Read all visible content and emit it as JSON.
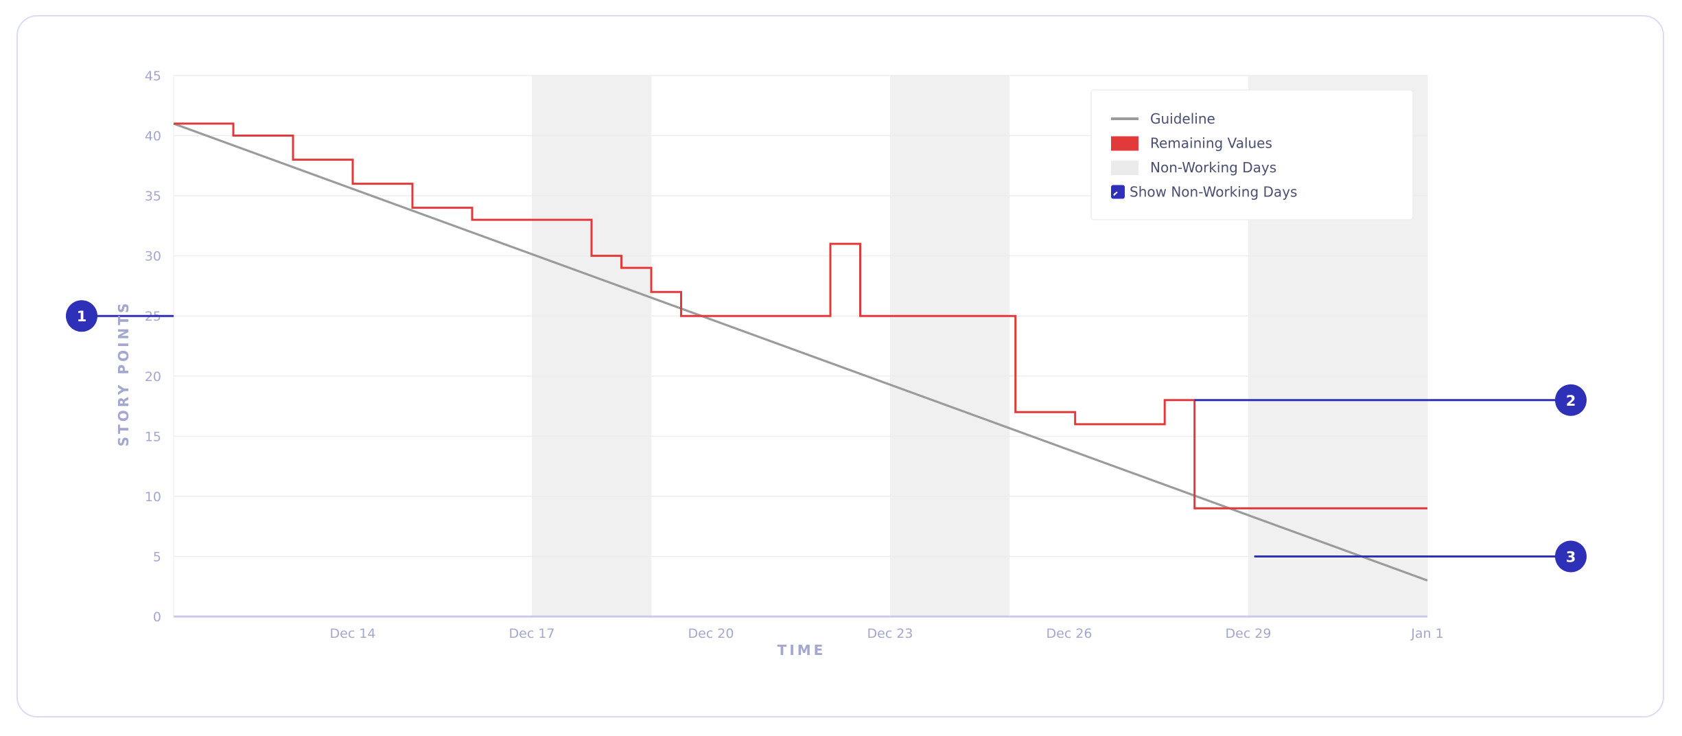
{
  "chart_data": {
    "type": "line",
    "xlabel": "TIME",
    "ylabel": "STORY POINTS",
    "ylim": [
      0,
      45
    ],
    "yticks": [
      0,
      5,
      10,
      15,
      20,
      25,
      30,
      35,
      40,
      45
    ],
    "xrange_days": [
      "Dec 11",
      "Jan 1"
    ],
    "xticks": [
      {
        "day": 3,
        "label": "Dec 14"
      },
      {
        "day": 6,
        "label": "Dec 17"
      },
      {
        "day": 9,
        "label": "Dec 20"
      },
      {
        "day": 12,
        "label": "Dec 23"
      },
      {
        "day": 15,
        "label": "Dec 26"
      },
      {
        "day": 18,
        "label": "Dec 29"
      },
      {
        "day": 21,
        "label": "Jan 1"
      }
    ],
    "non_working_days": [
      [
        6,
        8
      ],
      [
        12,
        14
      ],
      [
        18,
        21
      ]
    ],
    "series": [
      {
        "name": "Guideline",
        "kind": "line",
        "color": "#9b9b9b",
        "points": [
          [
            0,
            41
          ],
          [
            21,
            3
          ]
        ]
      },
      {
        "name": "Remaining Values",
        "kind": "step",
        "color": "#e23a3a",
        "points": [
          [
            0,
            41
          ],
          [
            1,
            40
          ],
          [
            2,
            38
          ],
          [
            3,
            36
          ],
          [
            4,
            34
          ],
          [
            5,
            33
          ],
          [
            7,
            30
          ],
          [
            7.5,
            29
          ],
          [
            8,
            27
          ],
          [
            8.5,
            25
          ],
          [
            11,
            31
          ],
          [
            11.5,
            25
          ],
          [
            14.1,
            17
          ],
          [
            15.1,
            16
          ],
          [
            16.6,
            18
          ],
          [
            17.1,
            9
          ],
          [
            21,
            9
          ]
        ]
      }
    ],
    "legend": {
      "position": "top-right",
      "items": [
        {
          "label": "Guideline",
          "swatch": "line",
          "color": "#9b9b9b"
        },
        {
          "label": "Remaining Values",
          "swatch": "box",
          "color": "#e23a3a"
        },
        {
          "label": "Non-Working Days",
          "swatch": "box",
          "color": "#ebebeb"
        },
        {
          "label": "Show Non-Working Days",
          "swatch": "checkbox",
          "color": "#2f30b8"
        }
      ]
    },
    "annotations": [
      {
        "label": "1",
        "y": 25,
        "side": "left"
      },
      {
        "label": "2",
        "y": 18,
        "side": "right",
        "from_day": 17.1
      },
      {
        "label": "3",
        "y": 5,
        "side": "right",
        "from_day": 18.1
      }
    ],
    "colors": {
      "annotation": "#2f30b8",
      "grid": "#ececf2",
      "axis": "#c9cbe6",
      "tick_text": "#a4a7cf"
    }
  }
}
